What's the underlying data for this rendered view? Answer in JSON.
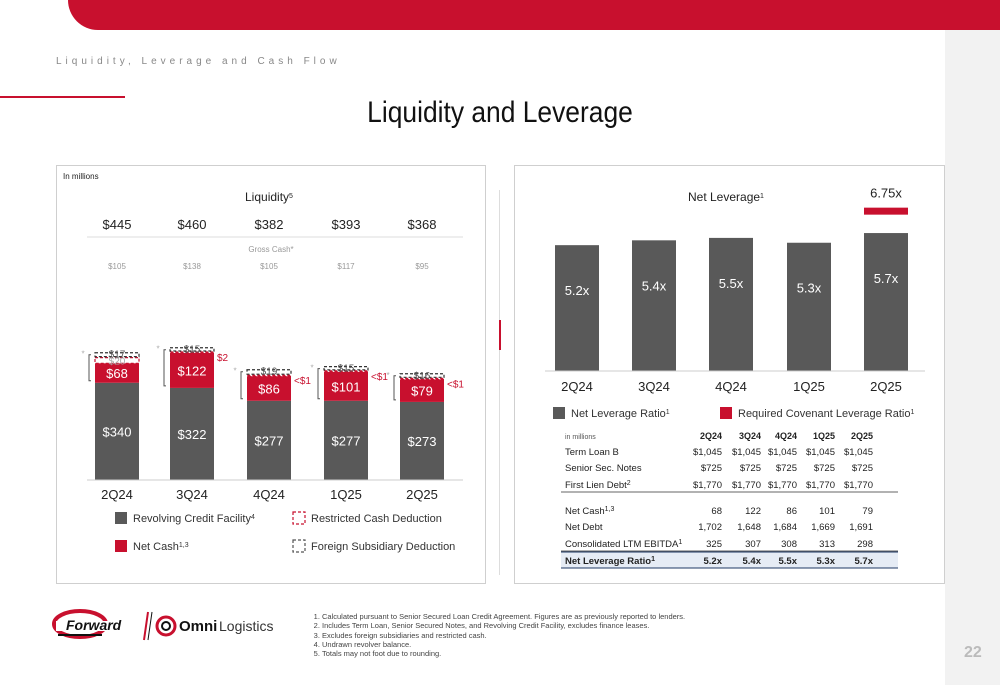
{
  "header": {
    "section": "Liquidity, Leverage and Cash Flow",
    "title": "Liquidity and Leverage"
  },
  "colors": {
    "accent": "#c8102e",
    "bar": "#595959"
  },
  "left_chart": {
    "units_note": "In millions",
    "title": "Liquidity",
    "title_sup": "5",
    "gross_cash_label": "Gross Cash*",
    "totals": [
      "$445",
      "$460",
      "$382",
      "$393",
      "$368"
    ],
    "gross_cash": [
      "$105",
      "$138",
      "$105",
      "$117",
      "$95"
    ],
    "legend": [
      {
        "label": "Revolving Credit Facility",
        "sup": "4"
      },
      {
        "label": "Net Cash",
        "sup": "1,3"
      },
      {
        "label": "Restricted Cash Deduction",
        "sup": ""
      },
      {
        "label": "Foreign Subsidiary Deduction",
        "sup": ""
      }
    ]
  },
  "right_chart": {
    "title": "Net Leverage",
    "title_sup": "1",
    "covenant_label": "6.75x",
    "legend": [
      {
        "label": "Net Leverage Ratio",
        "sup": "1"
      },
      {
        "label": "Required Covenant Leverage Ratio",
        "sup": "1"
      }
    ]
  },
  "chart_data": [
    {
      "type": "bar",
      "title": "Liquidity",
      "categories": [
        "2Q24",
        "3Q24",
        "4Q24",
        "1Q25",
        "2Q25"
      ],
      "series": [
        {
          "name": "Revolving Credit Facility",
          "values": [
            340,
            322,
            277,
            277,
            273
          ],
          "labels": [
            "$340",
            "$322",
            "$277",
            "$277",
            "$273"
          ]
        },
        {
          "name": "Net Cash",
          "values": [
            68,
            122,
            86,
            101,
            79
          ],
          "labels": [
            "$68",
            "$122",
            "$86",
            "$101",
            "$79"
          ]
        },
        {
          "name": "Restricted Cash Deduction",
          "values": [
            20,
            2,
            1,
            1,
            1
          ],
          "labels": [
            "$20",
            "$2",
            "<$1",
            "<$1",
            "<$1"
          ]
        },
        {
          "name": "Foreign Subsidiary Deduction",
          "values": [
            17,
            15,
            19,
            15,
            16
          ],
          "labels": [
            "$17",
            "$15",
            "$19",
            "$15",
            "$16"
          ]
        }
      ],
      "totals": [
        445,
        460,
        382,
        393,
        368
      ],
      "gross_cash": [
        105,
        138,
        105,
        117,
        95
      ]
    },
    {
      "type": "bar",
      "title": "Net Leverage",
      "categories": [
        "2Q24",
        "3Q24",
        "4Q24",
        "1Q25",
        "2Q25"
      ],
      "series": [
        {
          "name": "Net Leverage Ratio",
          "values": [
            5.2,
            5.4,
            5.5,
            5.3,
            5.7
          ],
          "labels": [
            "5.2x",
            "5.4x",
            "5.5x",
            "5.3x",
            "5.7x"
          ]
        },
        {
          "name": "Required Covenant Leverage Ratio",
          "values": [
            null,
            null,
            null,
            null,
            6.75
          ]
        }
      ]
    }
  ],
  "table": {
    "units": "in millions",
    "columns": [
      "2Q24",
      "3Q24",
      "4Q24",
      "1Q25",
      "2Q25"
    ],
    "rows": [
      {
        "label": "Term Loan B",
        "sup": "",
        "values": [
          "$1,045",
          "$1,045",
          "$1,045",
          "$1,045",
          "$1,045"
        ]
      },
      {
        "label": "Senior Sec. Notes",
        "sup": "",
        "values": [
          "$725",
          "$725",
          "$725",
          "$725",
          "$725"
        ]
      },
      {
        "label": "First Lien Debt",
        "sup": "2",
        "values": [
          "$1,770",
          "$1,770",
          "$1,770",
          "$1,770",
          "$1,770"
        ]
      },
      {
        "label": "Net Cash",
        "sup": "1,3",
        "values": [
          "68",
          "122",
          "86",
          "101",
          "79"
        ]
      },
      {
        "label": "Net Debt",
        "sup": "",
        "values": [
          "1,702",
          "1,648",
          "1,684",
          "1,669",
          "1,691"
        ]
      },
      {
        "label": "Consolidated LTM EBITDA",
        "sup": "1",
        "values": [
          "325",
          "307",
          "308",
          "313",
          "298"
        ]
      },
      {
        "label": "Net Leverage Ratio",
        "sup": "1",
        "values": [
          "5.2x",
          "5.4x",
          "5.5x",
          "5.3x",
          "5.7x"
        ]
      }
    ]
  },
  "footnotes": [
    "Calculated pursuant to Senior Secured Loan Credit Agreement. Figures are as previously reported to lenders.",
    "Includes Term Loan, Senior Secured Notes, and Revolving Credit Facility, excludes finance leases.",
    "Excludes foreign subsidiaries and restricted cash.",
    "Undrawn revolver balance.",
    "Totals may not foot due to rounding."
  ],
  "logos": {
    "forward": "Forward",
    "omni": "Omni",
    "omni_suffix": "Logistics"
  },
  "page_number": "22"
}
